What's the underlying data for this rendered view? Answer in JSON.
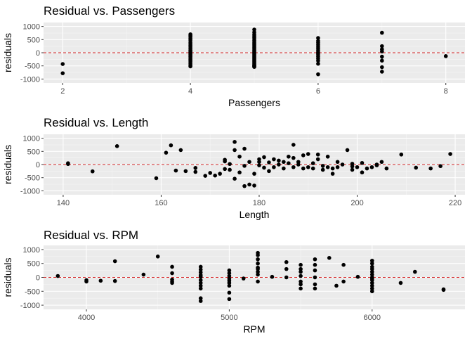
{
  "colors": {
    "panel_bg": "#ebebeb",
    "grid_major": "#ffffff",
    "grid_minor": "#f5f5f5",
    "point": "#000000",
    "zero_line": "#d62728",
    "tick_text": "#4d4d4d"
  },
  "chart_data": [
    {
      "type": "scatter",
      "title": "Residual vs. Passengers",
      "xlabel": "Passengers",
      "ylabel": "residuals",
      "xlim": [
        1.7,
        8.3
      ],
      "ylim": [
        -1150,
        1150
      ],
      "xticks": [
        2,
        4,
        6,
        8
      ],
      "xtick_labels": [
        "2",
        "4",
        "6",
        "8"
      ],
      "yticks": [
        1000,
        500,
        0,
        -500,
        -1000
      ],
      "ytick_labels": [
        "1000",
        "500",
        "0",
        "-500",
        "-1000"
      ],
      "grid": true,
      "reference_line": {
        "y": 0,
        "style": "dashed"
      },
      "x": [
        2,
        2,
        4,
        4,
        4,
        4,
        4,
        4,
        4,
        4,
        4,
        4,
        4,
        4,
        4,
        4,
        4,
        4,
        4,
        4,
        4,
        4,
        4,
        4,
        4,
        4,
        5,
        5,
        5,
        5,
        5,
        5,
        5,
        5,
        5,
        5,
        5,
        5,
        5,
        5,
        5,
        5,
        5,
        5,
        5,
        5,
        5,
        5,
        5,
        5,
        5,
        5,
        5,
        5,
        5,
        5,
        5,
        5,
        6,
        6,
        6,
        6,
        6,
        6,
        6,
        6,
        6,
        6,
        6,
        6,
        6,
        6,
        6,
        7,
        7,
        7,
        7,
        7,
        7,
        7,
        7,
        8
      ],
      "y": [
        -430,
        -780,
        700,
        650,
        600,
        540,
        480,
        400,
        340,
        280,
        220,
        160,
        100,
        60,
        20,
        -20,
        -60,
        -100,
        -150,
        -200,
        -250,
        -300,
        -350,
        -420,
        -480,
        -520,
        880,
        780,
        700,
        640,
        580,
        520,
        460,
        400,
        350,
        300,
        250,
        200,
        150,
        100,
        60,
        20,
        -20,
        -60,
        -100,
        -140,
        -180,
        -220,
        -260,
        -300,
        -340,
        -380,
        -420,
        -460,
        -480,
        -500,
        -520,
        -540,
        560,
        450,
        380,
        300,
        220,
        150,
        80,
        20,
        -30,
        -80,
        -150,
        -220,
        -300,
        -420,
        -820,
        760,
        250,
        130,
        50,
        -150,
        -300,
        -550,
        -720,
        -130
      ]
    },
    {
      "type": "scatter",
      "title": "Residual vs. Length",
      "xlabel": "Length",
      "ylabel": "residuals",
      "xlim": [
        136,
        222
      ],
      "ylim": [
        -1150,
        1150
      ],
      "xticks": [
        140,
        160,
        180,
        200,
        220
      ],
      "xtick_labels": [
        "140",
        "160",
        "180",
        "200",
        "220"
      ],
      "yticks": [
        1000,
        500,
        0,
        -500,
        -1000
      ],
      "ytick_labels": [
        "1000",
        "500",
        "0",
        "-500",
        "-1000"
      ],
      "grid": true,
      "reference_line": {
        "y": 0,
        "style": "dashed"
      },
      "x": [
        141,
        141,
        146,
        151,
        159,
        161,
        162,
        163,
        164,
        165,
        167,
        167,
        169,
        170,
        171,
        172,
        173,
        173,
        173,
        174,
        174,
        175,
        175,
        175,
        176,
        176,
        177,
        177,
        177,
        178,
        178,
        179,
        179,
        180,
        180,
        180,
        181,
        181,
        182,
        182,
        183,
        183,
        184,
        184,
        185,
        185,
        186,
        186,
        187,
        187,
        187,
        188,
        188,
        189,
        189,
        190,
        190,
        191,
        191,
        192,
        192,
        193,
        193,
        194,
        194,
        195,
        195,
        196,
        196,
        197,
        198,
        199,
        199,
        199,
        200,
        201,
        201,
        202,
        203,
        204,
        204,
        205,
        206,
        209,
        212,
        215,
        217,
        219
      ],
      "y": [
        50,
        20,
        -260,
        700,
        -520,
        450,
        730,
        -230,
        550,
        -250,
        -130,
        -280,
        -430,
        -320,
        -420,
        -350,
        -170,
        120,
        180,
        20,
        -200,
        550,
        860,
        -540,
        300,
        -300,
        600,
        -820,
        -50,
        -760,
        100,
        -800,
        -350,
        200,
        -30,
        100,
        -120,
        280,
        -250,
        80,
        200,
        -100,
        150,
        0,
        100,
        -150,
        300,
        50,
        750,
        -100,
        250,
        100,
        0,
        -150,
        350,
        400,
        -100,
        50,
        -150,
        200,
        380,
        -50,
        -200,
        300,
        -100,
        -350,
        -150,
        100,
        -100,
        0,
        550,
        -200,
        -70,
        30,
        -100,
        -300,
        60,
        -150,
        -100,
        0,
        -30,
        100,
        -150,
        380,
        -120,
        -150,
        -60,
        400
      ]
    },
    {
      "type": "scatter",
      "title": "Residual vs. RPM",
      "xlabel": "RPM",
      "ylabel": "residuals",
      "xlim": [
        3700,
        6650
      ],
      "ylim": [
        -1150,
        1150
      ],
      "xticks": [
        4000,
        5000,
        6000
      ],
      "xtick_labels": [
        "4000",
        "5000",
        "6000"
      ],
      "yticks": [
        1000,
        500,
        0,
        -500,
        -1000
      ],
      "ytick_labels": [
        "1000",
        "500",
        "0",
        "-500",
        "-1000"
      ],
      "grid": true,
      "reference_line": {
        "y": 0,
        "style": "dashed"
      },
      "x": [
        3800,
        4000,
        4000,
        4100,
        4200,
        4200,
        4400,
        4500,
        4600,
        4600,
        4600,
        4600,
        4600,
        4800,
        4800,
        4800,
        4800,
        4800,
        4800,
        4800,
        4800,
        4800,
        4800,
        4800,
        5000,
        5000,
        5000,
        5000,
        5000,
        5000,
        5000,
        5000,
        5000,
        5100,
        5200,
        5200,
        5200,
        5200,
        5200,
        5200,
        5200,
        5200,
        5200,
        5300,
        5400,
        5400,
        5400,
        5500,
        5500,
        5500,
        5500,
        5500,
        5500,
        5500,
        5600,
        5600,
        5600,
        5600,
        5600,
        5600,
        5700,
        5750,
        5800,
        5800,
        5900,
        6000,
        6000,
        6000,
        6000,
        6000,
        6000,
        6000,
        6000,
        6000,
        6000,
        6000,
        6000,
        6000,
        6200,
        6300,
        6500,
        6500
      ],
      "y": [
        50,
        -100,
        -150,
        -120,
        580,
        -130,
        100,
        750,
        380,
        150,
        -80,
        -150,
        -200,
        380,
        280,
        180,
        80,
        20,
        -100,
        -200,
        -300,
        -400,
        -750,
        -850,
        250,
        150,
        50,
        -50,
        -120,
        -200,
        -300,
        -550,
        -780,
        -40,
        880,
        800,
        650,
        500,
        350,
        300,
        200,
        100,
        -150,
        20,
        550,
        300,
        0,
        450,
        300,
        200,
        50,
        -150,
        -250,
        -400,
        650,
        450,
        250,
        0,
        -250,
        -400,
        700,
        -300,
        450,
        -150,
        20,
        600,
        500,
        380,
        300,
        200,
        100,
        0,
        -50,
        -100,
        -200,
        -300,
        -400,
        -500,
        -200,
        200,
        -430,
        -450
      ]
    }
  ]
}
